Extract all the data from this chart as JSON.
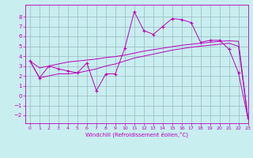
{
  "x": [
    0,
    1,
    2,
    3,
    4,
    5,
    6,
    7,
    8,
    9,
    10,
    11,
    12,
    13,
    14,
    15,
    16,
    17,
    18,
    19,
    20,
    21,
    22,
    23
  ],
  "line_jagged": [
    3.5,
    1.8,
    3.0,
    2.7,
    2.5,
    2.3,
    3.3,
    0.5,
    2.2,
    2.2,
    4.8,
    8.5,
    6.6,
    6.2,
    7.0,
    7.8,
    7.7,
    7.4,
    5.4,
    5.6,
    5.6,
    4.7,
    2.3,
    -2.3
  ],
  "line_upper": [
    3.5,
    2.8,
    3.0,
    3.2,
    3.4,
    3.5,
    3.6,
    3.7,
    3.85,
    3.95,
    4.1,
    4.3,
    4.5,
    4.65,
    4.8,
    4.95,
    5.1,
    5.2,
    5.3,
    5.4,
    5.5,
    5.55,
    5.5,
    -2.3
  ],
  "line_lower": [
    3.5,
    1.8,
    2.0,
    2.2,
    2.2,
    2.3,
    2.5,
    2.7,
    3.0,
    3.2,
    3.5,
    3.8,
    4.0,
    4.2,
    4.4,
    4.6,
    4.75,
    4.9,
    5.0,
    5.1,
    5.2,
    5.3,
    5.0,
    -2.3
  ],
  "color": "#bb00bb",
  "bg_color": "#c8eef0",
  "grid_color": "#9ab8c0",
  "xlabel": "Windchill (Refroidissement éolien,°C)",
  "ylim": [
    -2.8,
    9.2
  ],
  "xlim": [
    -0.5,
    23
  ],
  "yticks": [
    -2,
    -1,
    0,
    1,
    2,
    3,
    4,
    5,
    6,
    7,
    8
  ],
  "xticks": [
    0,
    1,
    2,
    3,
    4,
    5,
    6,
    7,
    8,
    9,
    10,
    11,
    12,
    13,
    14,
    15,
    16,
    17,
    18,
    19,
    20,
    21,
    22,
    23
  ]
}
